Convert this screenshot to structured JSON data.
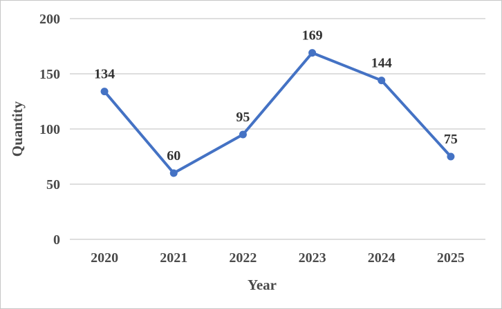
{
  "figure": {
    "background": "#ffffff",
    "border_color": "#c6c6c6"
  },
  "chart_data": {
    "type": "line",
    "title": "",
    "categories": [
      "2020",
      "2021",
      "2022",
      "2023",
      "2024",
      "2025"
    ],
    "values": [
      134,
      60,
      95,
      169,
      144,
      75
    ],
    "xlabel": "Year",
    "ylabel": "Quantity",
    "ylim": [
      0,
      200
    ],
    "yticks": [
      0,
      50,
      100,
      150,
      200
    ],
    "grid": true,
    "legend": false,
    "data_labels_visible": true,
    "line_color": "#4472C4",
    "marker": "circle",
    "gridline_color": "#d9d9d9",
    "tick_text_color": "#4a4a4a",
    "data_label_text_color": "#333333"
  }
}
